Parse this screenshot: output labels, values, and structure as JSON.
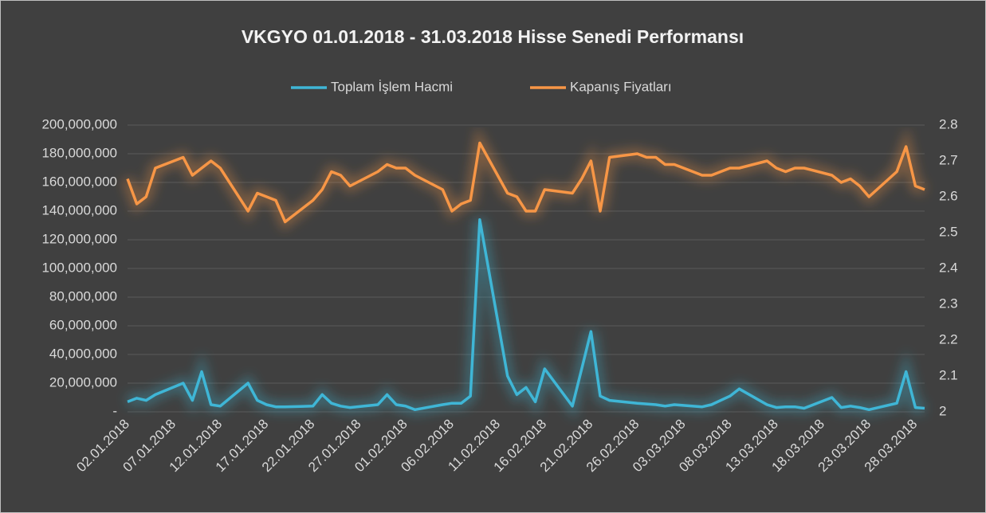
{
  "chart_data": {
    "type": "line",
    "title": "VKGYO 01.01.2018 - 31.03.2018 Hisse Senedi Performansı",
    "x": [
      "02.01.2018",
      "03.01.2018",
      "04.01.2018",
      "05.01.2018",
      "08.01.2018",
      "09.01.2018",
      "10.01.2018",
      "11.01.2018",
      "12.01.2018",
      "15.01.2018",
      "16.01.2018",
      "17.01.2018",
      "18.01.2018",
      "19.01.2018",
      "22.01.2018",
      "23.01.2018",
      "24.01.2018",
      "25.01.2018",
      "26.01.2018",
      "29.01.2018",
      "30.01.2018",
      "31.01.2018",
      "01.02.2018",
      "02.02.2018",
      "05.02.2018",
      "06.02.2018",
      "07.02.2018",
      "08.02.2018",
      "09.02.2018",
      "12.02.2018",
      "13.02.2018",
      "14.02.2018",
      "15.02.2018",
      "16.02.2018",
      "19.02.2018",
      "20.02.2018",
      "21.02.2018",
      "22.02.2018",
      "23.02.2018",
      "26.02.2018",
      "27.02.2018",
      "28.02.2018",
      "01.03.2018",
      "02.03.2018",
      "05.03.2018",
      "06.03.2018",
      "07.03.2018",
      "08.03.2018",
      "09.03.2018",
      "12.03.2018",
      "13.03.2018",
      "14.03.2018",
      "15.03.2018",
      "16.03.2018",
      "19.03.2018",
      "20.03.2018",
      "21.03.2018",
      "22.03.2018",
      "23.03.2018",
      "26.03.2018",
      "27.03.2018",
      "28.03.2018",
      "29.03.2018"
    ],
    "series": [
      {
        "name": "Toplam İşlem Hacmi",
        "color": "#3fb6d6",
        "axis": "y",
        "values": [
          7000000,
          9500000,
          8000000,
          12000000,
          20000000,
          8000000,
          28000000,
          5000000,
          4000000,
          20000000,
          8000000,
          5000000,
          3500000,
          3500000,
          4000000,
          12000000,
          6000000,
          4000000,
          3000000,
          5000000,
          12000000,
          5000000,
          4000000,
          1500000,
          5000000,
          6000000,
          6000000,
          11000000,
          134000000,
          25000000,
          12000000,
          17000000,
          7000000,
          30000000,
          4000000,
          30000000,
          56000000,
          11000000,
          8000000,
          6000000,
          5500000,
          5000000,
          4000000,
          5000000,
          3500000,
          5000000,
          8000000,
          11000000,
          16000000,
          5000000,
          3000000,
          3500000,
          3500000,
          2500000,
          10000000,
          3000000,
          4000000,
          3000000,
          1500000,
          6000000,
          28000000,
          3000000,
          2500000
        ]
      },
      {
        "name": "Kapanış Fiyatları",
        "color": "#f79646",
        "axis": "y2",
        "values": [
          2.65,
          2.58,
          2.6,
          2.68,
          2.71,
          2.66,
          2.68,
          2.7,
          2.68,
          2.56,
          2.61,
          2.6,
          2.59,
          2.53,
          2.59,
          2.62,
          2.67,
          2.66,
          2.63,
          2.67,
          2.69,
          2.68,
          2.68,
          2.66,
          2.62,
          2.56,
          2.58,
          2.59,
          2.75,
          2.61,
          2.6,
          2.56,
          2.56,
          2.62,
          2.61,
          2.65,
          2.7,
          2.56,
          2.71,
          2.72,
          2.71,
          2.71,
          2.69,
          2.69,
          2.66,
          2.66,
          2.67,
          2.68,
          2.68,
          2.7,
          2.68,
          2.67,
          2.68,
          2.68,
          2.66,
          2.64,
          2.65,
          2.63,
          2.6,
          2.67,
          2.74,
          2.63,
          2.62
        ]
      }
    ],
    "xlim": [
      "02.01.2018",
      "29.03.2018"
    ],
    "xticks": [
      "02.01.2018",
      "07.01.2018",
      "12.01.2018",
      "17.01.2018",
      "22.01.2018",
      "27.01.2018",
      "01.02.2018",
      "06.02.2018",
      "11.02.2018",
      "16.02.2018",
      "21.02.2018",
      "26.02.2018",
      "03.03.2018",
      "08.03.2018",
      "13.03.2018",
      "18.03.2018",
      "23.03.2018",
      "28.03.2018"
    ],
    "ylim": [
      0,
      200000000
    ],
    "yticks": [
      {
        "value": 0,
        "label": "-"
      },
      {
        "value": 20000000,
        "label": "20,000,000"
      },
      {
        "value": 40000000,
        "label": "40,000,000"
      },
      {
        "value": 60000000,
        "label": "60,000,000"
      },
      {
        "value": 80000000,
        "label": "80,000,000"
      },
      {
        "value": 100000000,
        "label": "100,000,000"
      },
      {
        "value": 120000000,
        "label": "120,000,000"
      },
      {
        "value": 140000000,
        "label": "140,000,000"
      },
      {
        "value": 160000000,
        "label": "160,000,000"
      },
      {
        "value": 180000000,
        "label": "180,000,000"
      },
      {
        "value": 200000000,
        "label": "200,000,000"
      }
    ],
    "y2lim": [
      2,
      2.8
    ],
    "y2ticks": [
      2,
      2.1,
      2.2,
      2.3,
      2.4,
      2.5,
      2.6,
      2.7,
      2.8
    ],
    "grid": true,
    "legend": "top"
  }
}
